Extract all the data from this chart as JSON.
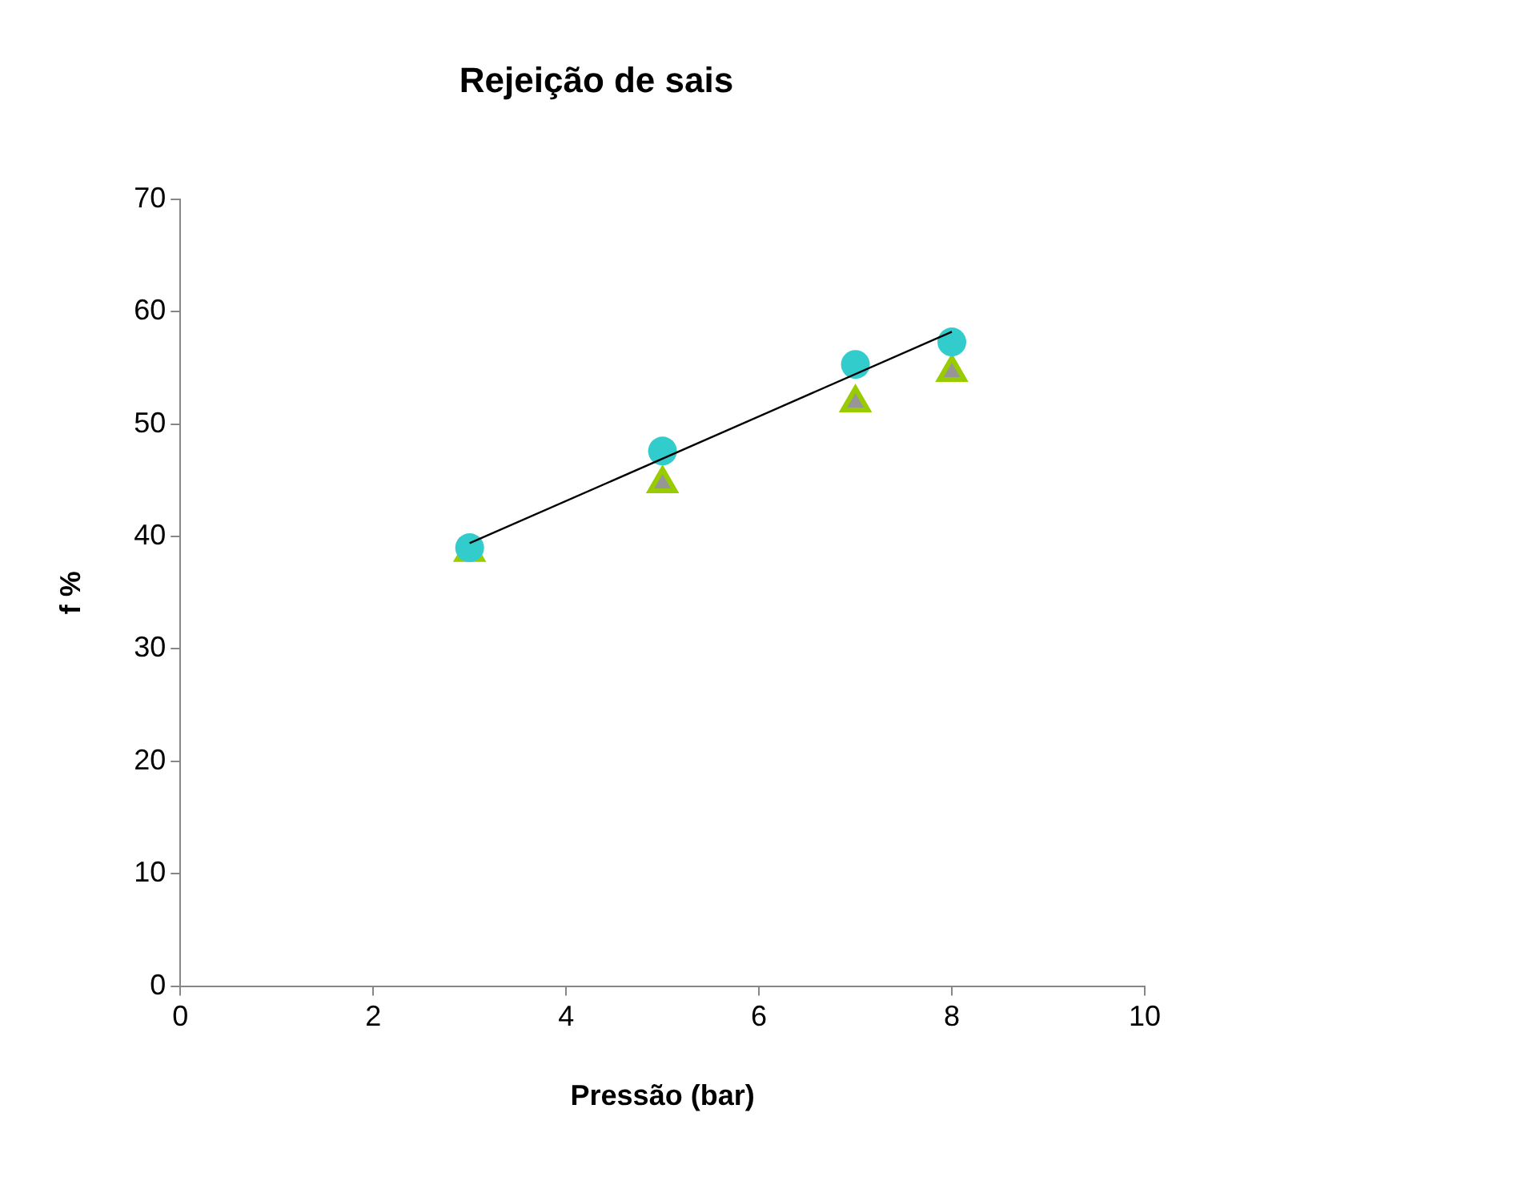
{
  "chart_data": {
    "type": "scatter",
    "title": "Rejeição de sais",
    "xlabel": "Pressão (bar)",
    "ylabel": "f %",
    "xlim": [
      0,
      10
    ],
    "xticks": [
      0,
      2,
      4,
      6,
      8,
      10
    ],
    "ylim": [
      0,
      70
    ],
    "yticks": [
      0,
      10,
      20,
      30,
      40,
      50,
      60,
      70
    ],
    "grid": false,
    "legend": false,
    "series": [
      {
        "color": "#99cc00",
        "marker": "triangle",
        "x": [
          3,
          5,
          7,
          8
        ],
        "values": [
          38.6,
          44.7,
          51.9,
          54.6
        ]
      },
      {
        "color": "#33cccc",
        "marker": "circle",
        "x": [
          3,
          5,
          7,
          8
        ],
        "values": [
          39.0,
          47.6,
          55.3,
          57.3
        ]
      },
      {
        "type": "line",
        "color": "#000000",
        "marker": "none",
        "x": [
          3,
          8
        ],
        "values": [
          39.4,
          58.2
        ]
      }
    ]
  }
}
